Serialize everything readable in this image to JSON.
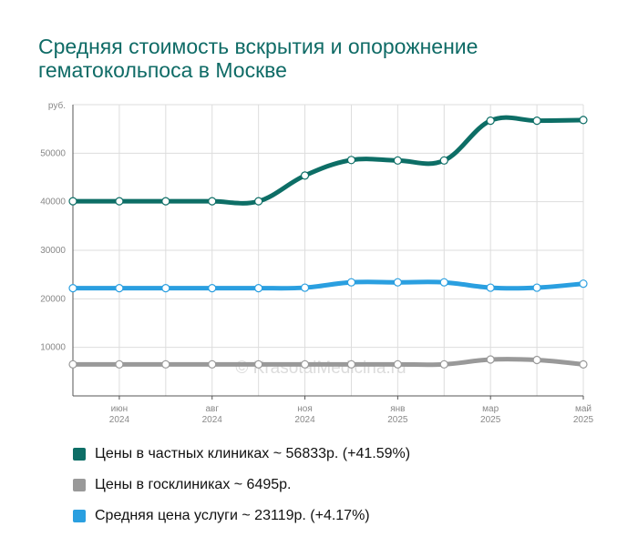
{
  "title_lines": [
    "Средняя стоимость вскрытия и опорожнение",
    "гематокольпоса в Москве"
  ],
  "watermark": "© KrasotaiMedicina.ru",
  "chart_data": {
    "type": "line",
    "ylabel": "руб.",
    "ylim": [
      0,
      60000
    ],
    "y_ticks": [
      "10000",
      "20000",
      "30000",
      "40000",
      "50000"
    ],
    "x_tick_labels": [
      {
        "month": "июн",
        "year": "2024"
      },
      {
        "month": "авг",
        "year": "2024"
      },
      {
        "month": "ноя",
        "year": "2024"
      },
      {
        "month": "янв",
        "year": "2025"
      },
      {
        "month": "мар",
        "year": "2025"
      },
      {
        "month": "май",
        "year": "2025"
      }
    ],
    "series": [
      {
        "name": "Цены в частных клиниках",
        "color": "#0d6e66",
        "values": [
          40100,
          40100,
          40100,
          40100,
          40100,
          45400,
          48600,
          48500,
          48500,
          56700,
          56700,
          56833
        ]
      },
      {
        "name": "Средняя цена услуги",
        "color": "#2a9fe0",
        "values": [
          22200,
          22200,
          22200,
          22200,
          22200,
          22300,
          23400,
          23400,
          23400,
          22300,
          22300,
          23119
        ]
      },
      {
        "name": "Цены в госклиниках",
        "color": "#999999",
        "values": [
          6500,
          6500,
          6500,
          6500,
          6500,
          6500,
          6500,
          6500,
          6500,
          7500,
          7400,
          6495
        ]
      }
    ]
  },
  "legend": [
    {
      "label": "Цены в частных клиниках ~ 56833р. (+41.59%)",
      "color": "#0d6e66"
    },
    {
      "label": "Цены в госклиниках ~ 6495р.",
      "color": "#999999"
    },
    {
      "label": "Средняя цена услуги ~ 23119р. (+4.17%)",
      "color": "#2a9fe0"
    }
  ]
}
